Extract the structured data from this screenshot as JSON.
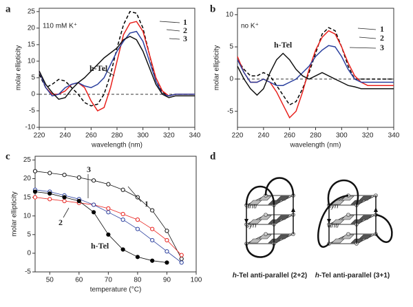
{
  "chart_data": [
    {
      "type": "line",
      "panel": "a",
      "annotations": [
        "110 mM K⁺"
      ],
      "xlabel": "wavelength (nm)",
      "ylabel": "molar ellipticity",
      "x": [
        220,
        225,
        230,
        235,
        240,
        245,
        250,
        255,
        260,
        265,
        270,
        275,
        280,
        285,
        290,
        295,
        300,
        305,
        310,
        315,
        320,
        325,
        330,
        335,
        340
      ],
      "xlim": [
        220,
        340
      ],
      "xticks": [
        220,
        240,
        260,
        280,
        300,
        320,
        340
      ],
      "ylim": [
        -10,
        26
      ],
      "yticks": [
        -10,
        -5,
        0,
        5,
        10,
        15,
        20,
        25
      ],
      "zero_line": true,
      "series": [
        {
          "name": "1",
          "color": "#000000",
          "dash": true,
          "values": [
            6,
            2,
            3,
            4.5,
            4,
            2,
            0,
            -2.5,
            -3.5,
            -3,
            0,
            6,
            14,
            21,
            25,
            24.5,
            20,
            12,
            4,
            0.5,
            -0.5,
            0,
            0,
            0,
            0
          ]
        },
        {
          "name": "2",
          "color": "#e8201c",
          "dash": false,
          "values": [
            7,
            2,
            0,
            0,
            1,
            3,
            3.5,
            2,
            -2,
            -5,
            -4,
            2,
            10,
            18,
            21.5,
            22,
            19,
            12,
            5,
            1,
            -0.5,
            0,
            0,
            0,
            0
          ]
        },
        {
          "name": "3",
          "color": "#2a3f9e",
          "dash": false,
          "values": [
            7,
            2,
            -0.5,
            0,
            2,
            3,
            3.5,
            2.5,
            2,
            3,
            5,
            9,
            13,
            16,
            18.5,
            19,
            16,
            10,
            4,
            0,
            -0.5,
            0,
            0,
            0,
            0
          ]
        },
        {
          "name": "h-Tel",
          "color": "#111111",
          "dash": false,
          "values": [
            7,
            3,
            0.5,
            -1.5,
            -1,
            1.5,
            3.5,
            5,
            7,
            9,
            11,
            12.5,
            14,
            16.5,
            17.5,
            16.5,
            13,
            8,
            3,
            0,
            -1,
            -0.5,
            -0.5,
            -0.5,
            -0.5
          ]
        }
      ]
    },
    {
      "type": "line",
      "panel": "b",
      "annotations": [
        "no K⁺"
      ],
      "xlabel": "wavelength (nm)",
      "ylabel": "molar ellipticity",
      "x": [
        220,
        225,
        230,
        235,
        240,
        245,
        250,
        255,
        260,
        265,
        270,
        275,
        280,
        285,
        290,
        295,
        300,
        305,
        310,
        315,
        320,
        325,
        330,
        335,
        340
      ],
      "xlim": [
        220,
        340
      ],
      "xticks": [
        220,
        240,
        260,
        280,
        300,
        320,
        340
      ],
      "ylim": [
        -7.5,
        11
      ],
      "yticks": [
        -5,
        0,
        5,
        10
      ],
      "zero_line": true,
      "series": [
        {
          "name": "1",
          "color": "#000000",
          "dash": true,
          "values": [
            3,
            1.5,
            0.5,
            0.5,
            1,
            0.5,
            -1,
            -2.5,
            -4,
            -3.5,
            -1.5,
            1,
            4,
            7,
            8,
            7.5,
            5,
            2,
            0,
            0,
            0,
            0,
            0,
            0,
            0
          ]
        },
        {
          "name": "2",
          "color": "#e8201c",
          "dash": false,
          "values": [
            3.5,
            1,
            -0.5,
            -0.5,
            0,
            -0.5,
            -2,
            -4,
            -6,
            -5,
            -2,
            1.5,
            4.5,
            6.5,
            7.5,
            7,
            5,
            2.5,
            0.5,
            -0.5,
            -1,
            -1,
            -1,
            -1,
            -1
          ]
        },
        {
          "name": "3",
          "color": "#2a3f9e",
          "dash": false,
          "values": [
            3,
            1,
            -0.5,
            -0.5,
            0,
            -0.5,
            -1,
            -1,
            -0.5,
            0,
            1,
            2,
            3.5,
            4.5,
            5.2,
            5,
            3.5,
            1.5,
            0,
            -0.5,
            -0.5,
            -0.5,
            -0.5,
            -0.5,
            -0.5
          ]
        },
        {
          "name": "h-Tel",
          "color": "#111111",
          "dash": false,
          "values": [
            2,
            0,
            -1.5,
            -2.5,
            -1.5,
            1,
            3,
            4,
            3,
            1.5,
            0.5,
            0,
            0.5,
            1,
            0.5,
            0,
            -0.5,
            -1,
            -1.2,
            -1.5,
            -1.5,
            -1.5,
            -1.5,
            -1.5,
            -1.5
          ]
        }
      ]
    },
    {
      "type": "scatter",
      "panel": "c",
      "annotations": [],
      "xlabel": "temperature (°C)",
      "ylabel": "molar ellipticity",
      "x": [
        45,
        50,
        55,
        60,
        65,
        70,
        75,
        80,
        85,
        90,
        95
      ],
      "xlim": [
        45,
        100
      ],
      "xticks": [
        50,
        60,
        70,
        80,
        90,
        100
      ],
      "ylim": [
        -5,
        26
      ],
      "yticks": [
        -5,
        0,
        5,
        10,
        15,
        20,
        25
      ],
      "zero_line": false,
      "series": [
        {
          "name": "1",
          "color": "#111111",
          "marker": "open",
          "values": [
            22,
            21.5,
            21,
            20.3,
            19.5,
            18.5,
            17,
            15,
            11.5,
            6,
            -1.5
          ]
        },
        {
          "name": "2",
          "color": "#e8201c",
          "marker": "open",
          "values": [
            15,
            14.5,
            14,
            13.5,
            13,
            12,
            10.5,
            9,
            6.5,
            3.5,
            -0.5
          ]
        },
        {
          "name": "3",
          "color": "#2a3f9e",
          "marker": "open",
          "values": [
            17,
            16.5,
            15.5,
            14.5,
            13,
            11,
            9,
            6.5,
            3.5,
            0.5,
            -2.5
          ]
        },
        {
          "name": "h-Tel",
          "color": "#000000",
          "marker": "filled",
          "values": [
            16.5,
            16,
            15,
            14,
            11,
            5,
            1,
            -1,
            -2,
            -2.5,
            null
          ]
        }
      ]
    }
  ],
  "diagram": {
    "panel": "d",
    "structures": [
      {
        "labels": [
          "anti",
          "syn"
        ],
        "caption_italic": "h",
        "caption": "-Tel anti-parallel (2+2)"
      },
      {
        "labels": [
          "syn",
          "anti"
        ],
        "caption_italic": "h",
        "caption": "-Tel anti-parallel (3+1)"
      }
    ]
  }
}
